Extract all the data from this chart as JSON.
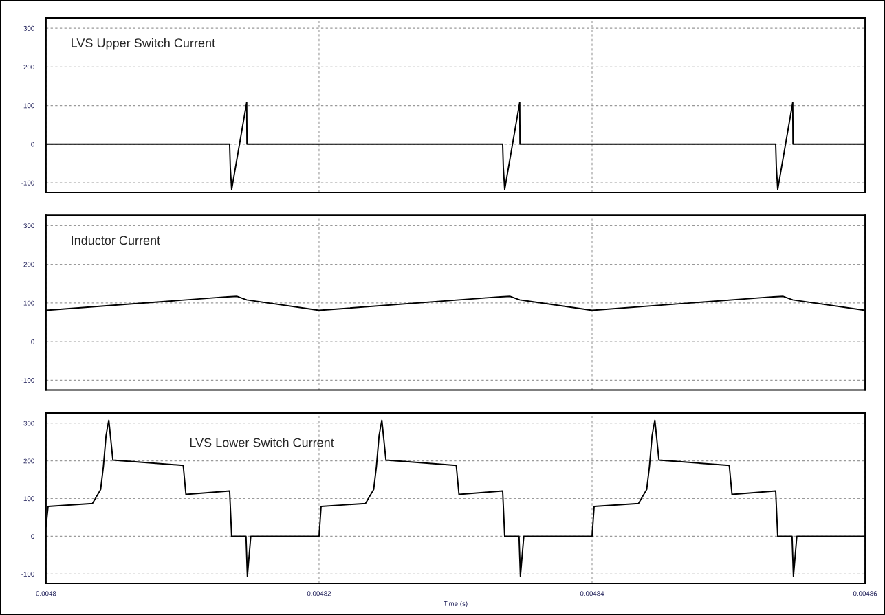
{
  "chart_data": [
    {
      "type": "line",
      "annotations": [
        "LVS Upper Switch Current"
      ],
      "xlim": [
        0.0048,
        0.00486
      ],
      "xticks": [
        0.0048,
        0.00482,
        0.00484,
        0.00486
      ],
      "ylim": [
        -125,
        327
      ],
      "yticks": [
        -100,
        0,
        100,
        200,
        300
      ],
      "grid": true,
      "line_style": "solid",
      "tick_labels": "y",
      "x": [
        0.0048,
        0.00481345,
        0.0048135,
        0.0048136,
        0.0048147,
        0.00481472,
        0.00483345,
        0.0048335,
        0.0048336,
        0.0048347,
        0.00483472,
        0.00485345,
        0.0048535,
        0.0048536,
        0.0048547,
        0.00485472,
        0.00486
      ],
      "series": [
        {
          "color": "#000000",
          "values": [
            0,
            0,
            -60,
            -117,
            108,
            0,
            0,
            -60,
            -117,
            108,
            0,
            0,
            -60,
            -117,
            108,
            0,
            0
          ]
        }
      ]
    },
    {
      "type": "line",
      "annotations": [
        "Inductor Current"
      ],
      "xlim": [
        0.0048,
        0.00486
      ],
      "xticks": [
        0.0048,
        0.00482,
        0.00484,
        0.00486
      ],
      "ylim": [
        -125,
        327
      ],
      "yticks": [
        -100,
        0,
        100,
        200,
        300
      ],
      "grid": true,
      "line_style": "solid",
      "tick_labels": "y",
      "x": [
        0.0048,
        0.0048133,
        0.004814,
        0.0048147,
        0.00482,
        0.0048333,
        0.004834,
        0.0048347,
        0.00484,
        0.0048533,
        0.004854,
        0.0048547,
        0.00486
      ],
      "series": [
        {
          "color": "#000000",
          "values": [
            81,
            116,
            117,
            108,
            81,
            116,
            117,
            108,
            81,
            116,
            117,
            108,
            81
          ]
        }
      ]
    },
    {
      "type": "line",
      "annotations": [
        "LVS Lower Switch Current"
      ],
      "xlabel": "Time (s)",
      "xlim": [
        0.0048,
        0.00486
      ],
      "xticks": [
        0.0048,
        0.00482,
        0.00484,
        0.00486
      ],
      "ylim": [
        -125,
        327
      ],
      "yticks": [
        -100,
        0,
        100,
        200,
        300
      ],
      "grid": true,
      "line_style": "solid",
      "x": [
        0.0048,
        0.00480015,
        0.0048034,
        0.004804,
        0.0048042,
        0.0048044,
        0.0048046,
        0.0048049,
        0.00481005,
        0.00481025,
        0.00481345,
        0.0048136,
        0.00481465,
        0.00481475,
        0.004815,
        0.00482,
        0.00482015,
        0.0048234,
        0.004824,
        0.0048242,
        0.0048244,
        0.0048246,
        0.0048249,
        0.00483005,
        0.00483025,
        0.00483345,
        0.0048336,
        0.00483465,
        0.00483475,
        0.004835,
        0.00484,
        0.00484015,
        0.0048434,
        0.004844,
        0.0048442,
        0.0048444,
        0.0048446,
        0.0048449,
        0.00485005,
        0.00485025,
        0.00485345,
        0.0048536,
        0.00485465,
        0.00485475,
        0.004855,
        0.00486
      ],
      "series": [
        {
          "color": "#000000",
          "values": [
            26,
            79,
            87,
            124,
            184,
            268,
            308,
            202,
            188,
            111,
            120,
            0,
            0,
            -106,
            0,
            0,
            79,
            87,
            124,
            184,
            268,
            308,
            202,
            188,
            111,
            120,
            0,
            0,
            -106,
            0,
            0,
            79,
            87,
            124,
            184,
            268,
            308,
            202,
            188,
            111,
            120,
            0,
            0,
            -106,
            0,
            0
          ]
        }
      ]
    }
  ]
}
